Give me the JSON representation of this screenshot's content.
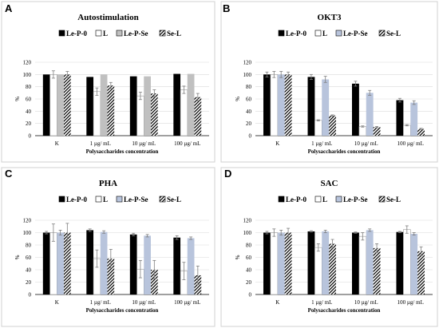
{
  "legend": {
    "entries": [
      {
        "name": "Le-P-0",
        "pattern": "solid-black"
      },
      {
        "name": "L",
        "pattern": "white"
      },
      {
        "name": "Le-P-Se",
        "pattern": "light"
      },
      {
        "name": "Se-L",
        "pattern": "hatched"
      }
    ]
  },
  "colors": {
    "Le-P-0": "#000000",
    "L": "#ffffff",
    "Le-P-Se-A": "#c0c0c0",
    "Le-P-Se-other": "#b8c4dc",
    "frame": "#d0d0d0",
    "grid": "#d9d9d9",
    "error_bar": "#7f7f7f"
  },
  "chart_data": [
    {
      "panel": "A",
      "type": "bar",
      "title": "Autostimulation",
      "categories": [
        "K",
        "1 µg/ mL",
        "10 µg/ mL",
        "100 µg/ mL"
      ],
      "xlabel": "Polysaccharides concentration",
      "ylabel": "%",
      "ylim": [
        0,
        120
      ],
      "yticks": [
        "0",
        "20",
        "40",
        "60",
        "80",
        "100",
        "120"
      ],
      "grid": true,
      "legend_position": "top",
      "series": [
        {
          "name": "Le-P-0",
          "values": [
            100,
            96,
            97,
            101
          ],
          "errors": [
            0,
            0,
            0,
            0
          ]
        },
        {
          "name": "L",
          "values": [
            100,
            72,
            65,
            75
          ],
          "errors": [
            6,
            6,
            6,
            6
          ]
        },
        {
          "name": "Le-P-Se",
          "values": [
            100,
            100,
            97,
            101
          ],
          "errors": [
            0,
            0,
            0,
            0
          ]
        },
        {
          "name": "Se-L",
          "values": [
            100,
            82,
            69,
            63
          ],
          "errors": [
            5,
            5,
            6,
            6
          ]
        }
      ]
    },
    {
      "panel": "B",
      "type": "bar",
      "title": "OKT3",
      "categories": [
        "K",
        "1 µg/ mL",
        "10 µg/ mL",
        "100 µg/ mL"
      ],
      "xlabel": "Polysaccharides concentration",
      "ylabel": "%",
      "ylim": [
        0,
        120
      ],
      "yticks": [
        "0",
        "20",
        "40",
        "60",
        "80",
        "100",
        "120"
      ],
      "grid": true,
      "legend_position": "top",
      "series": [
        {
          "name": "Le-P-0",
          "values": [
            100,
            96,
            85,
            58
          ],
          "errors": [
            4,
            4,
            4,
            3
          ]
        },
        {
          "name": "L",
          "values": [
            100,
            25,
            15,
            17
          ],
          "errors": [
            5,
            1,
            1,
            1
          ]
        },
        {
          "name": "Le-P-Se",
          "values": [
            100,
            92,
            70,
            54
          ],
          "errors": [
            5,
            5,
            4,
            3
          ]
        },
        {
          "name": "Se-L",
          "values": [
            100,
            33,
            14,
            11
          ],
          "errors": [
            4,
            1,
            1,
            1
          ]
        }
      ]
    },
    {
      "panel": "C",
      "type": "bar",
      "title": "PHA",
      "categories": [
        "K",
        "1 µg/ mL",
        "10 µg/ mL",
        "100 µg/ mL"
      ],
      "xlabel": "Polysaccharides concentration",
      "ylabel": "%",
      "ylim": [
        0,
        120
      ],
      "yticks": [
        "0",
        "20",
        "40",
        "60",
        "80",
        "100",
        "120"
      ],
      "grid": true,
      "legend_position": "top",
      "series": [
        {
          "name": "Le-P-0",
          "values": [
            100,
            104,
            97,
            92
          ],
          "errors": [
            2,
            2,
            2,
            3
          ]
        },
        {
          "name": "L",
          "values": [
            100,
            58,
            41,
            38
          ],
          "errors": [
            14,
            14,
            14,
            14
          ]
        },
        {
          "name": "Le-P-Se",
          "values": [
            100,
            101,
            95,
            91
          ],
          "errors": [
            4,
            2,
            2,
            2
          ]
        },
        {
          "name": "Se-L",
          "values": [
            100,
            58,
            40,
            31
          ],
          "errors": [
            15,
            15,
            15,
            15
          ]
        }
      ]
    },
    {
      "panel": "D",
      "type": "bar",
      "title": "SAC",
      "categories": [
        "K",
        "1 µg/ mL",
        "10 µg/ mL",
        "100 µg/ mL"
      ],
      "xlabel": "Polysaccharides concentration",
      "ylabel": "%",
      "ylim": [
        0,
        120
      ],
      "yticks": [
        "0",
        "20",
        "40",
        "60",
        "80",
        "100",
        "120"
      ],
      "grid": true,
      "legend_position": "top",
      "series": [
        {
          "name": "Le-P-0",
          "values": [
            100,
            102,
            100,
            101
          ],
          "errors": [
            2,
            1,
            1,
            1
          ]
        },
        {
          "name": "L",
          "values": [
            100,
            76,
            94,
            105
          ],
          "errors": [
            6,
            6,
            6,
            6
          ]
        },
        {
          "name": "Le-P-Se",
          "values": [
            100,
            102,
            104,
            98
          ],
          "errors": [
            4,
            2,
            2,
            2
          ]
        },
        {
          "name": "Se-L",
          "values": [
            100,
            82,
            75,
            70
          ],
          "errors": [
            7,
            7,
            7,
            7
          ]
        }
      ]
    }
  ]
}
